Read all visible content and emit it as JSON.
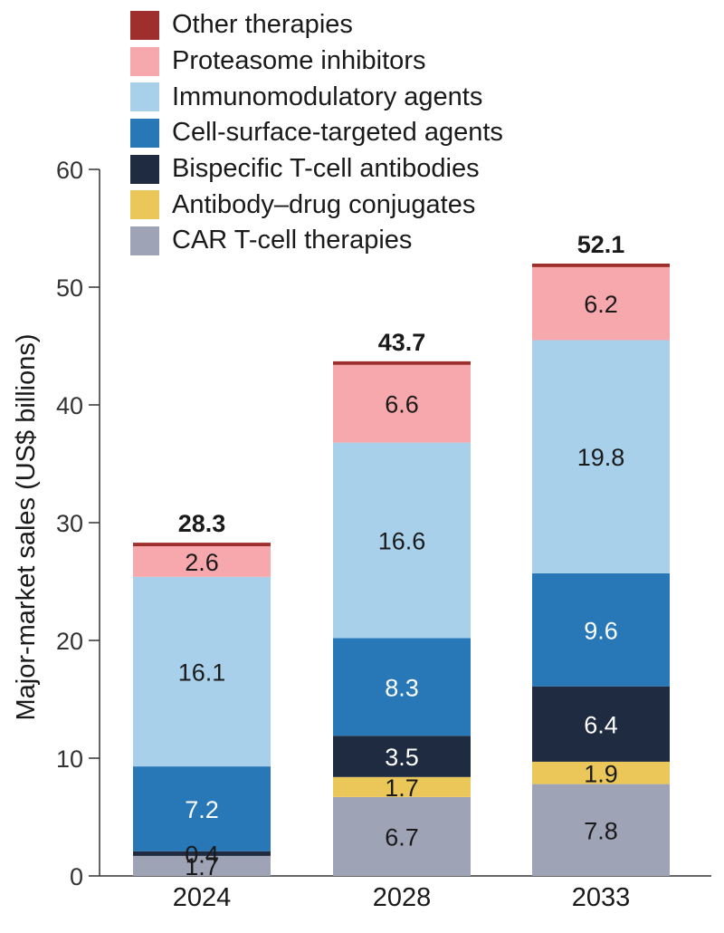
{
  "chart_data": {
    "type": "bar",
    "stacked": true,
    "ylabel": "Major-market sales (US$ billions)",
    "xlabel": "",
    "ylim": [
      0,
      60
    ],
    "yticks": [
      0,
      10,
      20,
      30,
      40,
      50,
      60
    ],
    "categories": [
      "2024",
      "2028",
      "2033"
    ],
    "totals": [
      "28.3",
      "43.7",
      "52.1"
    ],
    "legend_position": "top-left",
    "grid": false,
    "series": [
      {
        "name": "CAR T-cell therapies",
        "color": "#9ea3b5",
        "values": [
          1.7,
          6.7,
          7.8
        ],
        "labels": [
          "1.7",
          "6.7",
          "7.8"
        ]
      },
      {
        "name": "Antibody–drug conjugates",
        "color": "#ebc75a",
        "values": [
          0,
          1.7,
          1.9
        ],
        "labels": [
          "",
          "1.7",
          "1.9"
        ]
      },
      {
        "name": "Bispecific T-cell antibodies",
        "color": "#1f2b40",
        "values": [
          0.4,
          3.5,
          6.4
        ],
        "labels": [
          "0.4",
          "3.5",
          "6.4"
        ]
      },
      {
        "name": "Cell-surface-targeted agents",
        "color": "#2878b8",
        "values": [
          7.2,
          8.3,
          9.6
        ],
        "labels": [
          "7.2",
          "8.3",
          "9.6"
        ]
      },
      {
        "name": "Immunomodulatory agents",
        "color": "#a8d0ea",
        "values": [
          16.1,
          16.6,
          19.8
        ],
        "labels": [
          "16.1",
          "16.6",
          "19.8"
        ]
      },
      {
        "name": "Proteasome inhibitors",
        "color": "#f7a8ac",
        "values": [
          2.6,
          6.6,
          6.2
        ],
        "labels": [
          "2.6",
          "6.6",
          "6.2"
        ]
      },
      {
        "name": "Other therapies",
        "color": "#9e2f2c",
        "values": [
          0.3,
          0.3,
          0.3
        ],
        "labels": [
          "",
          "",
          ""
        ]
      }
    ],
    "legend_order": [
      6,
      5,
      4,
      3,
      2,
      1,
      0
    ],
    "label_colors": {
      "dark": "#1a1a1a",
      "light": "#ffffff"
    },
    "light_label_series": [
      2,
      3
    ]
  }
}
